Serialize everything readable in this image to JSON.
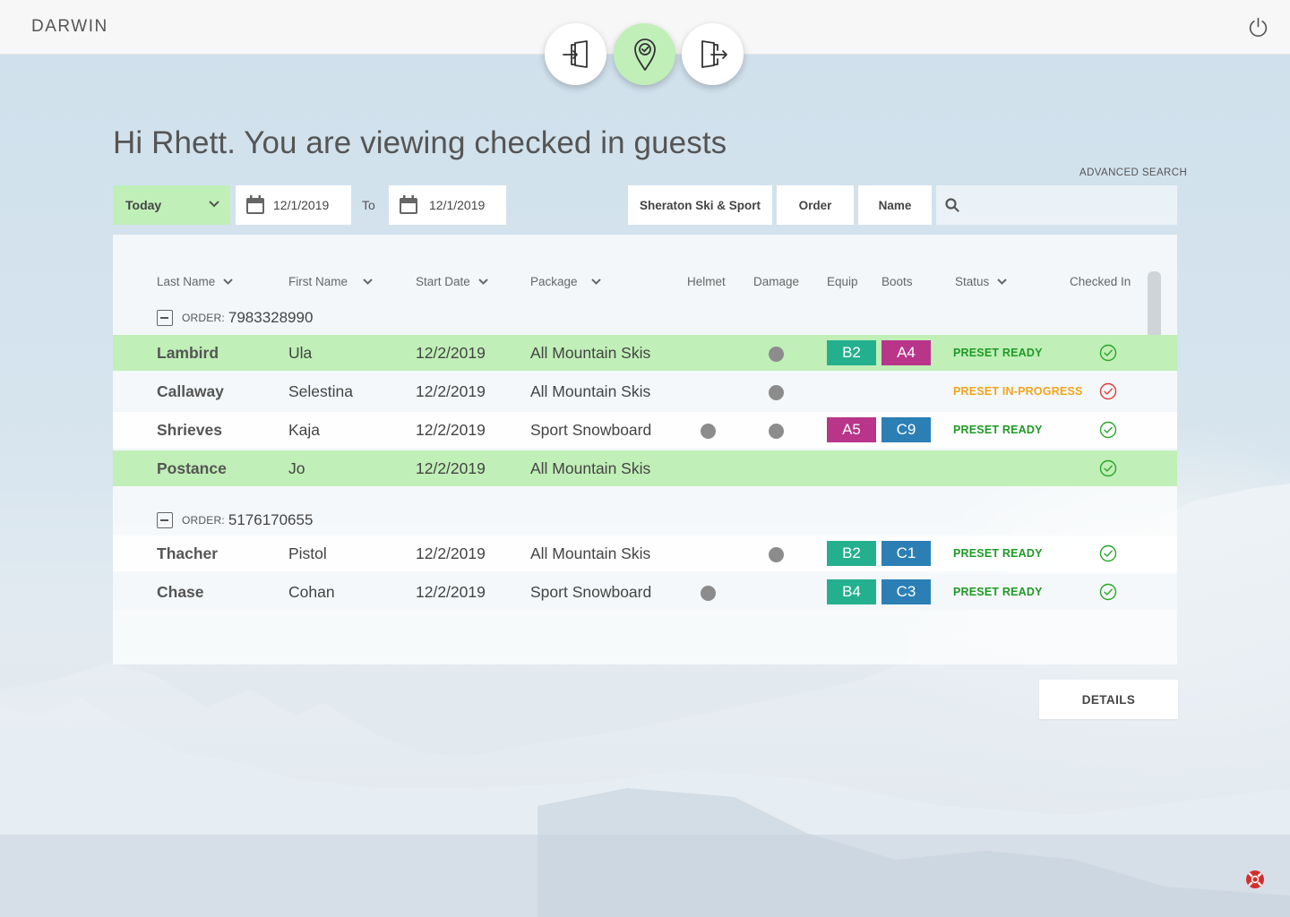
{
  "app": {
    "brand": "DARWIN"
  },
  "nav": [
    {
      "name": "check-in",
      "icon": "door-enter-icon",
      "active": false
    },
    {
      "name": "checked-in",
      "icon": "location-check-icon",
      "active": true
    },
    {
      "name": "check-out",
      "icon": "door-exit-icon",
      "active": false
    }
  ],
  "greeting": "Hi Rhett. You are viewing checked in guests",
  "advanced_search": "ADVANCED SEARCH",
  "filters": {
    "range": "Today",
    "date_from": "12/1/2019",
    "to_label": "To",
    "date_to": "12/1/2019",
    "store": "Sheraton Ski & Sport",
    "order": "Order",
    "name": "Name",
    "search_value": ""
  },
  "columns": {
    "last_name": "Last Name",
    "first_name": "First Name",
    "start_date": "Start Date",
    "package": "Package",
    "helmet": "Helmet",
    "damage": "Damage",
    "equip": "Equip",
    "boots": "Boots",
    "status": "Status",
    "checked_in": "Checked In"
  },
  "order_label": "ORDER:",
  "orders": [
    {
      "number": "7983328990",
      "rows": [
        {
          "last": "Lambird",
          "first": "Ula",
          "date": "12/2/2019",
          "package": "All Mountain Skis",
          "helmet": false,
          "damage": true,
          "equip": "B2",
          "boots": "A4",
          "status": "PRESET READY",
          "checked": "ok",
          "style": "green"
        },
        {
          "last": "Callaway",
          "first": "Selestina",
          "date": "12/2/2019",
          "package": "All Mountain Skis",
          "helmet": false,
          "damage": true,
          "equip": "",
          "boots": "",
          "status": "PRESET IN-PROGRESS",
          "checked": "alert",
          "style": "light"
        },
        {
          "last": "Shrieves",
          "first": "Kaja",
          "date": "12/2/2019",
          "package": "Sport Snowboard",
          "helmet": true,
          "damage": true,
          "equip": "A5",
          "boots": "C9",
          "status": "PRESET READY",
          "checked": "ok",
          "style": "white"
        },
        {
          "last": "Postance",
          "first": "Jo",
          "date": "12/2/2019",
          "package": "All Mountain Skis",
          "helmet": false,
          "damage": false,
          "equip": "",
          "boots": "",
          "status": "",
          "checked": "ok",
          "style": "green"
        }
      ]
    },
    {
      "number": "5176170655",
      "rows": [
        {
          "last": "Thacher",
          "first": "Pistol",
          "date": "12/2/2019",
          "package": "All Mountain Skis",
          "helmet": false,
          "damage": true,
          "equip": "B2",
          "boots": "C1",
          "status": "PRESET READY",
          "checked": "ok",
          "style": "white"
        },
        {
          "last": "Chase",
          "first": "Cohan",
          "date": "12/2/2019",
          "package": "Sport Snowboard",
          "helmet": true,
          "damage": false,
          "equip": "B4",
          "boots": "C3",
          "status": "PRESET READY",
          "checked": "ok",
          "style": "light"
        }
      ]
    }
  ],
  "tag_colors": {
    "A4": "#b8358a",
    "A5": "#b8358a",
    "B2": "#24b08f",
    "B4": "#24b08f",
    "C1": "#2b7fb5",
    "C3": "#2b7fb5",
    "C9": "#2b7fb5"
  },
  "status_colors": {
    "PRESET READY": "#1f9a26",
    "PRESET IN-PROGRESS": "#f2a41c"
  },
  "details_button": "DETAILS"
}
